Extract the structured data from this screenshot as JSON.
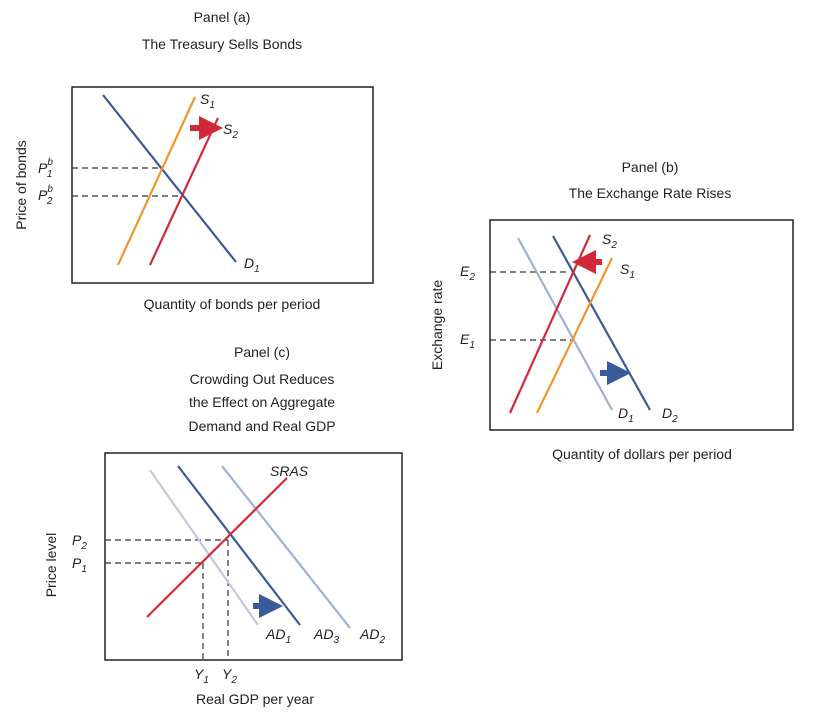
{
  "panels": [
    {
      "title": [
        "Panel (a)",
        "The Treasury Sells Bonds"
      ],
      "y_label": "Price of bonds",
      "x_label": "Quantity of bonds per period",
      "curves": [
        {
          "main": "S",
          "sub": "1"
        },
        {
          "main": "S",
          "sub": "2"
        },
        {
          "main": "D",
          "sub": "1"
        }
      ],
      "points": [
        {
          "main": "P",
          "sup": "b",
          "sub": "1"
        },
        {
          "main": "P",
          "sup": "b",
          "sub": "2"
        }
      ]
    },
    {
      "title": [
        "Panel (b)",
        "The Exchange Rate Rises"
      ],
      "y_label": "Exchange rate",
      "x_label": "Quantity of dollars per period",
      "curves": [
        {
          "main": "S",
          "sub": "2"
        },
        {
          "main": "S",
          "sub": "1"
        },
        {
          "main": "D",
          "sub": "1"
        },
        {
          "main": "D",
          "sub": "2"
        }
      ],
      "points": [
        {
          "main": "E",
          "sub": "2"
        },
        {
          "main": "E",
          "sub": "1"
        }
      ]
    },
    {
      "title": [
        "Panel (c)",
        "Crowding Out Reduces",
        "the Effect on Aggregate",
        "Demand and Real GDP"
      ],
      "y_label": "Price level",
      "x_label": "Real GDP per year",
      "curves": [
        {
          "main": "SRAS"
        },
        {
          "main": "AD",
          "sub": "1"
        },
        {
          "main": "AD",
          "sub": "3"
        },
        {
          "main": "AD",
          "sub": "2"
        }
      ],
      "points": [
        {
          "main": "P",
          "sub": "2"
        },
        {
          "main": "P",
          "sub": "1"
        },
        {
          "main": "Y",
          "sub": "1"
        },
        {
          "main": "Y",
          "sub": "2"
        }
      ]
    }
  ]
}
